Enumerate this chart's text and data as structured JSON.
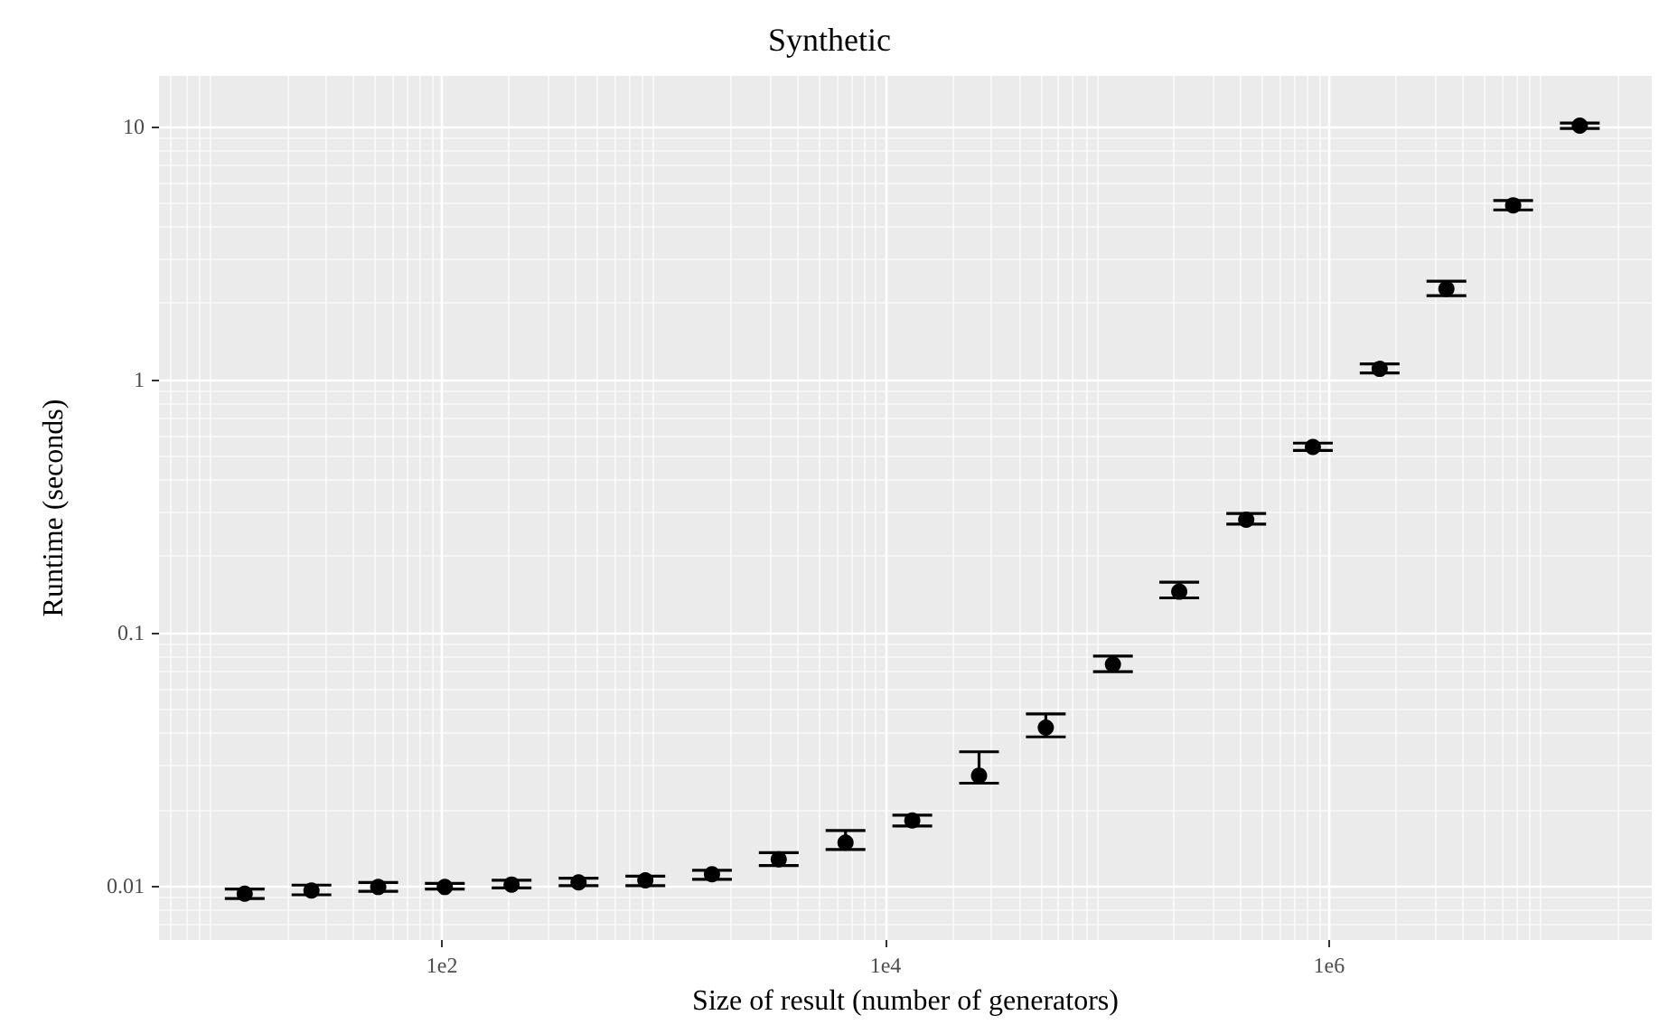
{
  "chart_data": {
    "type": "scatter",
    "title": "Synthetic",
    "xlabel": "Size of result (number of generators)",
    "ylabel": "Runtime (seconds)",
    "x": [
      12.9,
      25.8,
      51.6,
      103,
      206,
      413,
      826,
      1650,
      3300,
      6600,
      13200,
      26400,
      52800,
      106000,
      211000,
      423000,
      845000,
      1690000,
      3380000,
      6760000,
      13500000
    ],
    "values": [
      0.0093,
      0.00957,
      0.00988,
      0.00988,
      0.0101,
      0.0103,
      0.0105,
      0.0111,
      0.0127,
      0.0148,
      0.0181,
      0.0272,
      0.0421,
      0.0748,
      0.145,
      0.279,
      0.541,
      1.1,
      2.28,
      4.87,
      10.05
    ],
    "errors": [
      [
        0.0089,
        0.0097
      ],
      [
        0.0092,
        0.01005
      ],
      [
        0.0095,
        0.0103
      ],
      [
        0.0097,
        0.0102
      ],
      [
        0.0098,
        0.0105
      ],
      [
        0.01,
        0.0107
      ],
      [
        0.01,
        0.0109
      ],
      [
        0.0106,
        0.0115
      ],
      [
        0.012,
        0.0135
      ],
      [
        0.0139,
        0.0165
      ],
      [
        0.0172,
        0.019
      ],
      [
        0.0254,
        0.0338
      ],
      [
        0.0387,
        0.0477
      ],
      [
        0.07,
        0.0807
      ],
      [
        0.137,
        0.158
      ],
      [
        0.268,
        0.295
      ],
      [
        0.524,
        0.56
      ],
      [
        1.06,
        1.15
      ],
      [
        2.14,
        2.44
      ],
      [
        4.67,
        5.09
      ],
      [
        9.8,
        10.3
      ]
    ],
    "color": "#000000",
    "marker": "circle",
    "log": "xy",
    "grid": true,
    "xlim": [
      5.3,
      28500000
    ],
    "xticks": [
      {
        "value": 100,
        "label": "1e2"
      },
      {
        "value": 10000,
        "label": "1e4"
      },
      {
        "value": 1000000,
        "label": "1e6"
      }
    ],
    "ylim": [
      0.0061,
      15.8
    ],
    "yticks": [
      0.01,
      0.1,
      1,
      10
    ]
  }
}
